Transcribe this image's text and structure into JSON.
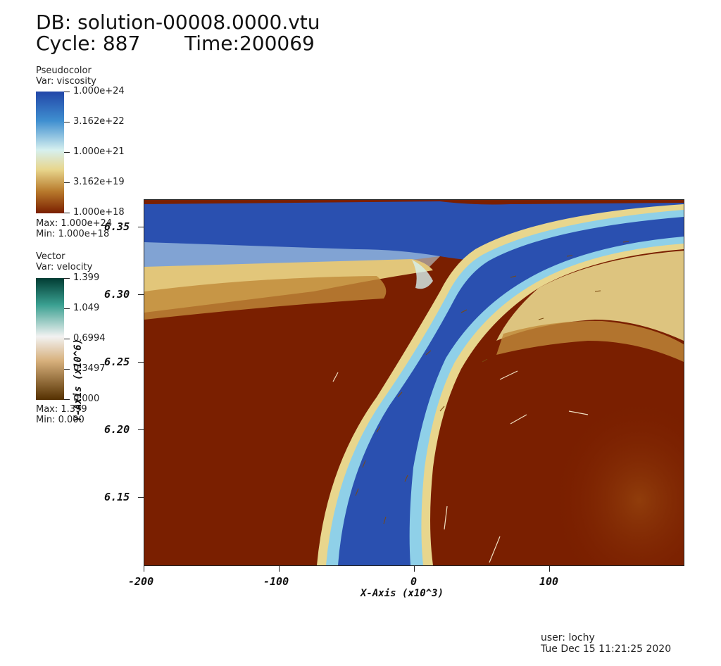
{
  "header": {
    "db_line": "DB: solution-00008.0000.vtu",
    "cycle_label": "Cycle: 887",
    "time_label": "Time:200069"
  },
  "pseudocolor_legend": {
    "plot_type": "Pseudocolor",
    "variable": "Var: viscosity",
    "ticks": [
      "1.000e+24",
      "3.162e+22",
      "1.000e+21",
      "3.162e+19",
      "1.000e+18"
    ],
    "max_label": "Max:  1.000e+24",
    "min_label": "Min:  1.000e+18",
    "colors": [
      "#2246a8",
      "#3f8fd0",
      "#d6f0ef",
      "#e8d68d",
      "#b87a2c",
      "#7a1f00"
    ],
    "scale": "log"
  },
  "vector_legend": {
    "plot_type": "Vector",
    "variable": "Var: velocity",
    "ticks": [
      "1.399",
      "1.049",
      "0.6994",
      "0.3497",
      "0.000"
    ],
    "max_label": "Max:  1.399",
    "min_label": "Min:  0.000",
    "colors": [
      "#013c33",
      "#3aa091",
      "#f2f2f2",
      "#d7b07c",
      "#543000"
    ]
  },
  "plot": {
    "x_axis_title": "X-Axis (x10^3)",
    "y_axis_title": "Y-Axis (x10^6)",
    "x_ticks": [
      "-200",
      "-100",
      "0",
      "100"
    ],
    "y_ticks": [
      "6.35",
      "6.30",
      "6.25",
      "6.20",
      "6.15"
    ],
    "x_range": [
      -200,
      200
    ],
    "y_range": [
      6.1,
      6.37
    ],
    "background_color": "#7a1f00"
  },
  "footer": {
    "user": "user: lochy",
    "timestamp": "Tue Dec 15 11:21:25 2020"
  }
}
